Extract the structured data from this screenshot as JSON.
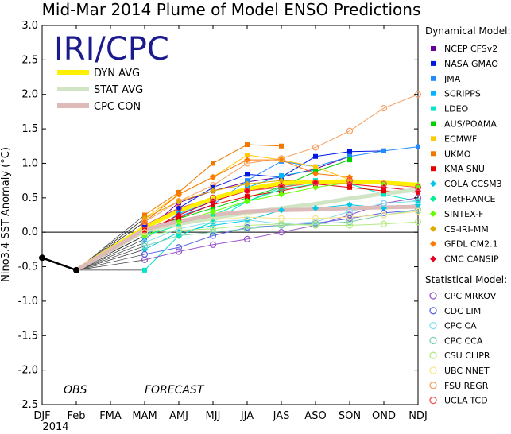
{
  "chart_data": {
    "type": "line",
    "title": "Mid-Mar 2014 Plume of Model ENSO Predictions",
    "ylabel": "Nino3.4 SST Anomaly (°C)",
    "ylim": [
      -2.5,
      3.0
    ],
    "yticks": [
      "3.0",
      "2.5",
      "2.0",
      "1.5",
      "1.0",
      "0.5",
      "0.0",
      "-0.5",
      "-1.0",
      "-1.5",
      "-2.0",
      "-2.5"
    ],
    "categories": [
      "DJF",
      "Feb",
      "FMA",
      "MAM",
      "AMJ",
      "MJJ",
      "JJA",
      "JAS",
      "ASO",
      "SON",
      "OND",
      "NDJ"
    ],
    "year_label": "2014",
    "logo": "IRI/CPC",
    "obs_label": "OBS",
    "forecast_label": "FORECAST",
    "observed": {
      "x": [
        "DJF",
        "Feb"
      ],
      "values": [
        -0.37,
        -0.55
      ]
    },
    "average_lines": [
      {
        "name": "DYN AVG",
        "color": "#ffef00",
        "values": [
          0.07,
          0.31,
          0.49,
          0.63,
          0.71,
          0.73,
          0.74,
          0.72,
          0.69
        ]
      },
      {
        "name": "STAT AVG",
        "color": "#cfe5c6",
        "values": [
          0.02,
          0.12,
          0.21,
          0.28,
          0.35,
          0.41,
          0.49,
          0.56,
          0.62
        ]
      },
      {
        "name": "CPC CON",
        "color": "#ddbbb9",
        "values": [
          0.04,
          0.16,
          0.25,
          0.3,
          0.32,
          0.33,
          0.35,
          0.36,
          0.37
        ]
      }
    ],
    "dynamical_header": "Dynamical Model:",
    "statistical_header": "Statistical Model:",
    "dynamical_models": [
      {
        "name": "NCEP CFSv2",
        "color": "#660099",
        "values": [
          0.0,
          0.43,
          0.6,
          0.73,
          0.8,
          0.92,
          1.1,
          null,
          null
        ]
      },
      {
        "name": "NASA GMAO",
        "color": "#0018e6",
        "values": [
          0.1,
          0.35,
          0.65,
          0.84,
          0.8,
          1.1,
          1.17,
          1.18,
          null
        ]
      },
      {
        "name": "JMA",
        "color": "#1e8cff",
        "values": [
          -0.1,
          0.23,
          0.4,
          0.75,
          1.03,
          0.95,
          1.1,
          1.18,
          1.24
        ]
      },
      {
        "name": "SCRIPPS",
        "color": "#00b4ff",
        "values": [
          -0.05,
          0.27,
          0.45,
          0.65,
          0.82,
          0.9,
          null,
          null,
          null
        ]
      },
      {
        "name": "LDEO",
        "color": "#00e6c8",
        "values": [
          -0.55,
          -0.05,
          0.15,
          0.45,
          0.65,
          0.75,
          0.7,
          0.55,
          0.45
        ]
      },
      {
        "name": "AUS/POAMA",
        "color": "#00d200",
        "values": [
          0.0,
          0.2,
          0.35,
          0.5,
          0.66,
          0.88,
          1.05,
          null,
          null
        ]
      },
      {
        "name": "ECMWF",
        "color": "#ffc800",
        "values": [
          0.2,
          0.55,
          0.8,
          1.12,
          1.05,
          0.95,
          0.76,
          null,
          null
        ]
      },
      {
        "name": "UKMO",
        "color": "#f07800",
        "values": [
          0.25,
          0.58,
          1.0,
          1.27,
          1.25,
          null,
          null,
          null,
          null
        ]
      },
      {
        "name": "KMA SNU",
        "color": "#e60000",
        "values": [
          0.05,
          0.21,
          0.4,
          0.52,
          0.6,
          0.7,
          0.65,
          0.6,
          0.58
        ]
      },
      {
        "name": "COLA CCSM3",
        "color": "#00c8e6",
        "values": [
          -0.25,
          0.0,
          0.1,
          0.17,
          0.32,
          0.35,
          0.4,
          0.35,
          0.4
        ]
      },
      {
        "name": "MetFRANCE",
        "color": "#00f096",
        "values": [
          -0.05,
          0.1,
          0.25,
          0.45,
          0.62,
          0.7,
          null,
          null,
          null
        ]
      },
      {
        "name": "SINTEX-F",
        "color": "#66ff00",
        "values": [
          -0.05,
          0.15,
          0.3,
          0.45,
          0.55,
          0.65,
          0.72,
          0.7,
          0.68
        ]
      },
      {
        "name": "CS-IRI-MM",
        "color": "#e1aa00",
        "values": [
          0.2,
          0.45,
          0.6,
          0.7,
          0.75,
          0.73,
          0.72,
          null,
          null
        ]
      },
      {
        "name": "GFDL CM2.1",
        "color": "#ff7800",
        "values": [
          0.15,
          0.55,
          0.8,
          1.05,
          1.05,
          0.85,
          0.8,
          null,
          null
        ]
      },
      {
        "name": "CMC CANSIP",
        "color": "#e6001e",
        "values": [
          0.0,
          0.25,
          0.45,
          0.6,
          0.68,
          0.72,
          0.7,
          0.65,
          0.6
        ]
      }
    ],
    "statistical_models": [
      {
        "name": "CPC MRKOV",
        "color": "#9a55c8",
        "values": [
          -0.4,
          -0.28,
          -0.18,
          -0.1,
          0.0,
          0.1,
          0.25,
          0.42,
          0.5
        ]
      },
      {
        "name": "CDC LIM",
        "color": "#5a64e6",
        "values": [
          -0.32,
          -0.22,
          -0.05,
          0.07,
          0.1,
          0.13,
          0.2,
          0.28,
          0.32
        ]
      },
      {
        "name": "CPC CA",
        "color": "#82dcf0",
        "values": [
          -0.15,
          0.05,
          0.15,
          0.18,
          0.12,
          0.15,
          0.3,
          0.42,
          0.45
        ]
      },
      {
        "name": "CPC CCA",
        "color": "#7ad2aa",
        "values": [
          -0.2,
          -0.05,
          0.0,
          0.05,
          0.1,
          0.12,
          0.15,
          0.25,
          0.32
        ]
      },
      {
        "name": "CSU CLIPR",
        "color": "#b4ea82",
        "values": [
          -0.05,
          0.03,
          0.05,
          0.1,
          0.12,
          0.1,
          0.1,
          0.12,
          0.15
        ]
      },
      {
        "name": "UBC NNET",
        "color": "#f5e68c",
        "values": [
          0.0,
          0.1,
          0.18,
          0.22,
          0.2,
          0.2,
          0.22,
          0.25,
          0.3
        ]
      },
      {
        "name": "FSU REGR",
        "color": "#f5a064",
        "values": [
          0.15,
          0.45,
          0.68,
          1.0,
          1.07,
          1.23,
          1.47,
          1.8,
          2.0
        ]
      },
      {
        "name": "UCLA-TCD",
        "color": "#f05050",
        "values": [
          0.1,
          0.35,
          0.5,
          0.6,
          0.65,
          0.72,
          0.75,
          0.7,
          0.65
        ]
      }
    ]
  }
}
